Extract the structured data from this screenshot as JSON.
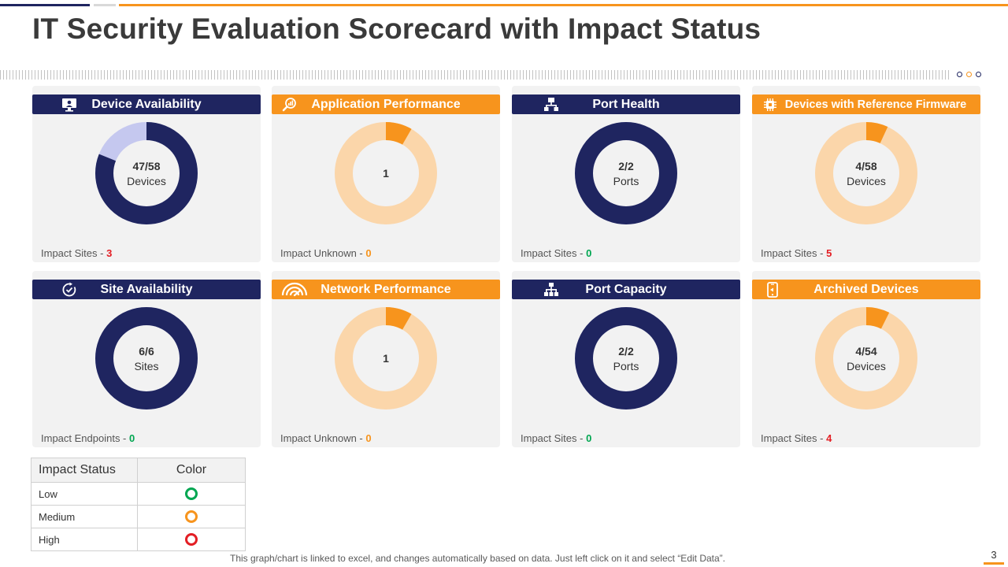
{
  "title": "IT Security Evaluation Scorecard with Impact Status",
  "colors": {
    "navy": "#1f2560",
    "navy_light": "#c5c8ef",
    "orange": "#f7941d",
    "orange_light": "#fbd6aa",
    "low": "#00a651",
    "medium": "#f7941d",
    "high": "#e31e24"
  },
  "chart_data": [
    {
      "type": "donut",
      "title": "Device Availability",
      "icon": "monitor-icon",
      "theme": "navy",
      "value": 47,
      "total": 58,
      "value_text": "47/58",
      "unit": "Devices",
      "impact_label": "Impact Sites - ",
      "impact_value": "3",
      "impact_status": "high"
    },
    {
      "type": "donut",
      "title": "Application Performance",
      "icon": "performance-search-icon",
      "theme": "orange",
      "value": 1,
      "total": 12,
      "value_text": "1",
      "unit": "",
      "impact_label": "Impact Unknown - ",
      "impact_value": "0",
      "impact_status": "medium"
    },
    {
      "type": "donut",
      "title": "Port Health",
      "icon": "network-hierarchy-icon",
      "theme": "navy",
      "value": 2,
      "total": 2,
      "value_text": "2/2",
      "unit": "Ports",
      "impact_label": "Impact Sites - ",
      "impact_value": "0",
      "impact_status": "low"
    },
    {
      "type": "donut",
      "title": "Devices with Reference Firmware",
      "icon": "chip-icon",
      "theme": "orange",
      "value": 4,
      "total": 58,
      "value_text": "4/58",
      "unit": "Devices",
      "impact_label": "Impact Sites - ",
      "impact_value": "5",
      "impact_status": "high"
    },
    {
      "type": "donut",
      "title": "Site Availability",
      "icon": "clock-check-icon",
      "theme": "navy",
      "value": 6,
      "total": 6,
      "value_text": "6/6",
      "unit": "Sites",
      "impact_label": "Impact Endpoints - ",
      "impact_value": "0",
      "impact_status": "low"
    },
    {
      "type": "donut",
      "title": "Network Performance",
      "icon": "speedometer-icon",
      "theme": "orange",
      "value": 1,
      "total": 12,
      "value_text": "1",
      "unit": "",
      "impact_label": "Impact Unknown - ",
      "impact_value": "0",
      "impact_status": "medium"
    },
    {
      "type": "donut",
      "title": "Port Capacity",
      "icon": "network-nodes-icon",
      "theme": "navy",
      "value": 2,
      "total": 2,
      "value_text": "2/2",
      "unit": "Ports",
      "impact_label": "Impact Sites - ",
      "impact_value": "0",
      "impact_status": "low"
    },
    {
      "type": "donut",
      "title": "Archived Devices",
      "icon": "mobile-device-icon",
      "theme": "orange",
      "value": 4,
      "total": 54,
      "value_text": "4/54",
      "unit": "Devices",
      "impact_label": "Impact Sites - ",
      "impact_value": "4",
      "impact_status": "high"
    }
  ],
  "legend": {
    "header_status": "Impact Status",
    "header_color": "Color",
    "rows": [
      {
        "label": "Low",
        "status": "low"
      },
      {
        "label": "Medium",
        "status": "medium"
      },
      {
        "label": "High",
        "status": "high"
      }
    ]
  },
  "footer": "This graph/chart is linked to excel, and changes automatically based on data. Just left click on it and select “Edit Data”.",
  "page_number": "3"
}
